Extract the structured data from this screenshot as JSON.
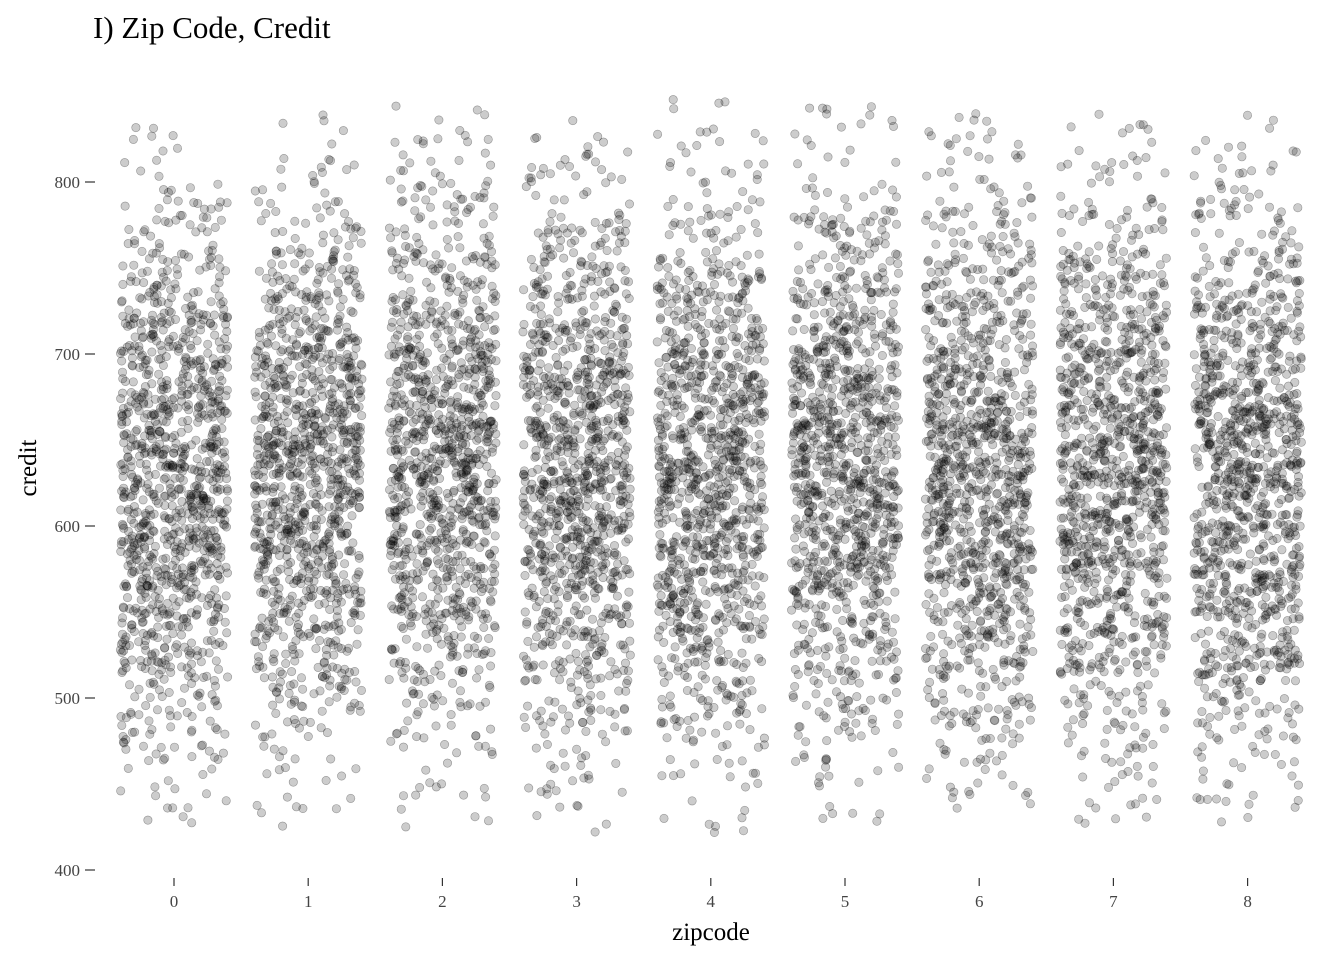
{
  "chart_data": {
    "type": "scatter",
    "title": "I) Zip Code, Credit",
    "xlabel": "zipcode",
    "ylabel": "credit",
    "categories": [
      "0",
      "1",
      "2",
      "3",
      "4",
      "5",
      "6",
      "7",
      "8"
    ],
    "x_ticks": [
      0,
      1,
      2,
      3,
      4,
      5,
      6,
      7,
      8
    ],
    "y_ticks": [
      400,
      500,
      600,
      700,
      800
    ],
    "ylim": [
      400,
      850
    ],
    "xlim": [
      -0.5,
      8.5
    ],
    "grid": false,
    "jitter_width": 0.4,
    "point_color": "#000000",
    "point_alpha": 0.2,
    "series": [
      {
        "zipcode": 0,
        "n_points": 1100,
        "credit_min": 426,
        "credit_max": 834,
        "credit_center": 630,
        "credit_sd": 85
      },
      {
        "zipcode": 1,
        "n_points": 1100,
        "credit_min": 420,
        "credit_max": 842,
        "credit_center": 630,
        "credit_sd": 85
      },
      {
        "zipcode": 2,
        "n_points": 1100,
        "credit_min": 417,
        "credit_max": 845,
        "credit_center": 640,
        "credit_sd": 85
      },
      {
        "zipcode": 3,
        "n_points": 1100,
        "credit_min": 420,
        "credit_max": 845,
        "credit_center": 630,
        "credit_sd": 85
      },
      {
        "zipcode": 4,
        "n_points": 1100,
        "credit_min": 420,
        "credit_max": 848,
        "credit_center": 630,
        "credit_sd": 85
      },
      {
        "zipcode": 5,
        "n_points": 1100,
        "credit_min": 425,
        "credit_max": 848,
        "credit_center": 635,
        "credit_sd": 85
      },
      {
        "zipcode": 6,
        "n_points": 1100,
        "credit_min": 423,
        "credit_max": 850,
        "credit_center": 630,
        "credit_sd": 85
      },
      {
        "zipcode": 7,
        "n_points": 1100,
        "credit_min": 426,
        "credit_max": 850,
        "credit_center": 630,
        "credit_sd": 85
      },
      {
        "zipcode": 8,
        "n_points": 1100,
        "credit_min": 425,
        "credit_max": 842,
        "credit_center": 630,
        "credit_sd": 85
      }
    ]
  }
}
